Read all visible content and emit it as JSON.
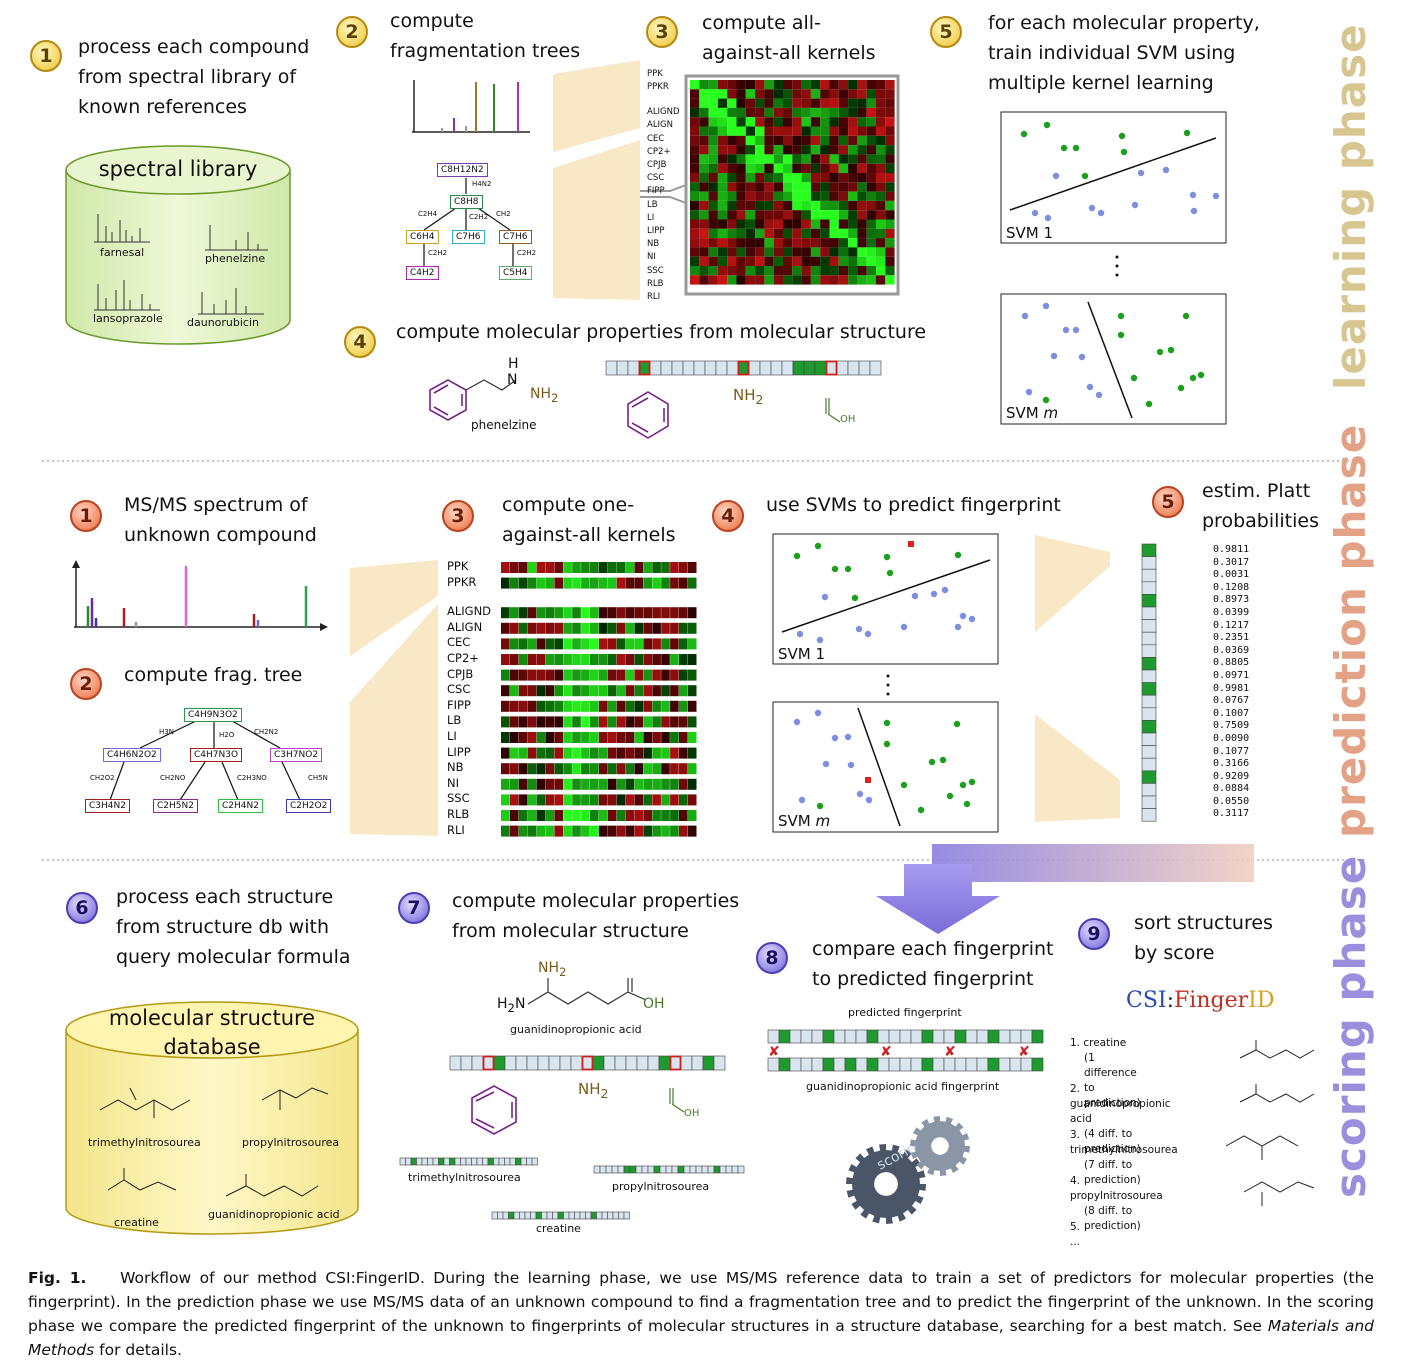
{
  "phases": {
    "learning": {
      "label": "learning phase",
      "color": "#d7c690"
    },
    "prediction": {
      "label": "prediction phase",
      "color": "#e3a185"
    },
    "scoring": {
      "label": "scoring phase",
      "color": "#9a8fdc"
    }
  },
  "learning": {
    "step1": {
      "num": "1",
      "text": "process each compound\nfrom spectral library of\nknown references"
    },
    "library": {
      "title": "spectral library",
      "compounds": [
        "farnesal",
        "phenelzine",
        "lansoprazole",
        "daunorubicin"
      ]
    },
    "step2": {
      "num": "2",
      "text": "compute\nfragmentation trees"
    },
    "tree_nodes": [
      "C8H12N2",
      "C8H8",
      "C6H4",
      "C7H6",
      "C7H6",
      "C4H2",
      "C5H4"
    ],
    "tree_edges": [
      "H4N2",
      "C2H4",
      "C2H2",
      "CH2",
      "C2H2",
      "C2H2"
    ],
    "step3": {
      "num": "3",
      "text": "compute all-\nagainst-all kernels"
    },
    "kernels": [
      "PPK",
      "PPKR",
      "ALIGND",
      "ALIGN",
      "CEC",
      "CP2+",
      "CPJB",
      "CSC",
      "FIPP",
      "LB",
      "LI",
      "LIPP",
      "NB",
      "NI",
      "SSC",
      "RLB",
      "RLI"
    ],
    "step4": {
      "num": "4",
      "text": "compute molecular properties from molecular structure"
    },
    "molecule": "phenelzine",
    "mol_h": "H",
    "mol_n": "N",
    "nh2": "NH",
    "nh2_sub": "2",
    "oh": "OH",
    "step5": {
      "num": "5",
      "text": "for each molecular property,\ntrain individual SVM using\nmultiple kernel learning"
    },
    "svm1": "SVM 1",
    "svmm": "SVM",
    "svmm_italic": "m"
  },
  "prediction": {
    "step1": {
      "num": "1",
      "text": "MS/MS spectrum of\nunknown compound"
    },
    "step2": {
      "num": "2",
      "text": "compute frag. tree"
    },
    "tree_nodes": [
      "C4H9N3O2",
      "C4H6N2O2",
      "C4H7N3O",
      "C3H7NO2",
      "C3H4N2",
      "C2H5N2",
      "C2H4N2",
      "C2H2O2"
    ],
    "tree_edges": [
      "H3N",
      "H2O",
      "CH2N2",
      "CH2O2",
      "CH2NO",
      "C2H3NO",
      "CH5N"
    ],
    "step3": {
      "num": "3",
      "text": "compute one-\nagainst-all kernels"
    },
    "kernels": [
      "PPK",
      "PPKR",
      "ALIGND",
      "ALIGN",
      "CEC",
      "CP2+",
      "CPJB",
      "CSC",
      "FIPP",
      "LB",
      "LI",
      "LIPP",
      "NB",
      "NI",
      "SSC",
      "RLB",
      "RLI"
    ],
    "step4": {
      "num": "4",
      "text": "use SVMs to predict fingerprint"
    },
    "step5": {
      "num": "5",
      "text": "estim. Platt\nprobabilities"
    },
    "probabilities": [
      "0.9811",
      "0.3017",
      "0.0031",
      "0.1208",
      "0.8973",
      "0.0399",
      "0.1217",
      "0.2351",
      "0.0369",
      "0.8805",
      "0.0971",
      "0.9981",
      "0.0767",
      "0.1007",
      "0.7509",
      "0.0090",
      "0.1077",
      "0.3166",
      "0.9209",
      "0.0884",
      "0.0550",
      "0.3117"
    ],
    "svm1": "SVM 1",
    "svmm": "SVM",
    "svmm_italic": "m"
  },
  "scoring": {
    "step6": {
      "num": "6",
      "text": "process each structure\nfrom structure db with\nquery molecular formula"
    },
    "db": {
      "title": "molecular structure\ndatabase",
      "compounds": [
        "trimethylnitrosourea",
        "propylnitrosourea",
        "creatine",
        "guanidinopropionic acid"
      ]
    },
    "step7": {
      "num": "7",
      "text": "compute molecular properties\nfrom molecular structure"
    },
    "molecule": "guanidinopropionic acid",
    "fp_names": [
      "trimethylnitrosourea",
      "propylnitrosourea",
      "creatine"
    ],
    "nh2": "NH",
    "nh2_sub": "2",
    "oh": "OH",
    "step8": {
      "num": "8",
      "text": "compare each fingerprint\nto predicted fingerprint"
    },
    "predicted_fp": "predicted fingerprint",
    "candidate_fp": "guanidinopropionic acid fingerprint",
    "gear_text": "scoring",
    "step9": {
      "num": "9",
      "text": "sort structures\nby score"
    },
    "logo": {
      "csi": "CSI",
      "colon": ":",
      "finger": "Finger",
      "id": "ID"
    },
    "ranking": [
      {
        "line1": "1. creatine",
        "line2": "(1 difference to prediction)"
      },
      {
        "line1": "2. guanidinopropionic acid",
        "line2": "(4 diff. to prediction)"
      },
      {
        "line1": "3. trimethylnitrosourea",
        "line2": "(7 diff. to prediction)"
      },
      {
        "line1": "4. propylnitrosourea",
        "line2": "(8 diff. to prediction)"
      },
      {
        "line1": "5. ...",
        "line2": ""
      }
    ]
  },
  "caption": {
    "label": "Fig. 1.",
    "text": "Workflow of our method CSI:FingerID. During the learning phase, we use MS/MS reference data to train a set of predictors for molecular properties (the fingerprint). In the prediction phase we use MS/MS data of an unknown compound to find a fragmentation tree and to predict the fingerprint of the unknown. In the scoring phase we compare the predicted fingerprint of the unknown to fingerprints of molecular structures in a structure database, searching for a best match. See ",
    "italic": "Materials and Methods",
    "tail": " for details."
  }
}
